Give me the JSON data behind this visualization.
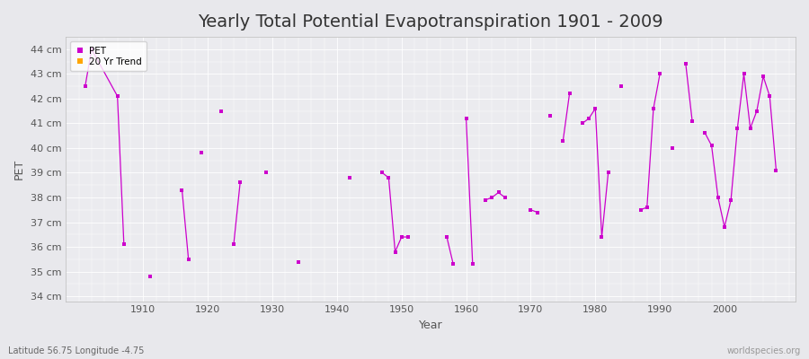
{
  "title": "Yearly Total Potential Evapotranspiration 1901 - 2009",
  "xlabel": "Year",
  "ylabel": "PET",
  "subtitle": "Latitude 56.75 Longitude -4.75",
  "watermark": "worldspecies.org",
  "pet_data": [
    [
      1901,
      42.5
    ],
    [
      1902,
      44.0
    ],
    [
      1906,
      42.1
    ],
    [
      1907,
      36.1
    ],
    [
      1908,
      null
    ],
    [
      1911,
      34.8
    ],
    [
      1912,
      null
    ],
    [
      1916,
      38.3
    ],
    [
      1917,
      35.5
    ],
    [
      1918,
      null
    ],
    [
      1919,
      39.8
    ],
    [
      1920,
      null
    ],
    [
      1922,
      41.5
    ],
    [
      1923,
      null
    ],
    [
      1924,
      36.1
    ],
    [
      1925,
      38.6
    ],
    [
      1926,
      null
    ],
    [
      1929,
      39.0
    ],
    [
      1930,
      null
    ],
    [
      1934,
      35.4
    ],
    [
      1935,
      null
    ],
    [
      1942,
      38.8
    ],
    [
      1943,
      null
    ],
    [
      1947,
      39.0
    ],
    [
      1948,
      38.8
    ],
    [
      1949,
      35.8
    ],
    [
      1950,
      36.4
    ],
    [
      1951,
      36.4
    ],
    [
      1952,
      null
    ],
    [
      1957,
      36.4
    ],
    [
      1958,
      35.3
    ],
    [
      1959,
      null
    ],
    [
      1960,
      41.2
    ],
    [
      1961,
      35.3
    ],
    [
      1962,
      null
    ],
    [
      1963,
      37.9
    ],
    [
      1964,
      38.0
    ],
    [
      1965,
      38.2
    ],
    [
      1966,
      38.0
    ],
    [
      1967,
      null
    ],
    [
      1970,
      37.5
    ],
    [
      1971,
      37.4
    ],
    [
      1972,
      null
    ],
    [
      1973,
      41.3
    ],
    [
      1974,
      null
    ],
    [
      1975,
      40.3
    ],
    [
      1976,
      42.2
    ],
    [
      1977,
      null
    ],
    [
      1978,
      41.0
    ],
    [
      1979,
      41.2
    ],
    [
      1980,
      41.6
    ],
    [
      1981,
      36.4
    ],
    [
      1982,
      39.0
    ],
    [
      1983,
      null
    ],
    [
      1984,
      42.5
    ],
    [
      1985,
      null
    ],
    [
      1987,
      37.5
    ],
    [
      1988,
      37.6
    ],
    [
      1989,
      41.6
    ],
    [
      1990,
      43.0
    ],
    [
      1991,
      null
    ],
    [
      1992,
      40.0
    ],
    [
      1993,
      null
    ],
    [
      1994,
      43.4
    ],
    [
      1995,
      41.1
    ],
    [
      1996,
      null
    ],
    [
      1997,
      40.6
    ],
    [
      1998,
      40.1
    ],
    [
      1999,
      38.0
    ],
    [
      2000,
      36.8
    ],
    [
      2001,
      37.9
    ],
    [
      2002,
      40.8
    ],
    [
      2003,
      43.0
    ],
    [
      2004,
      40.8
    ],
    [
      2005,
      41.5
    ],
    [
      2006,
      42.9
    ],
    [
      2007,
      42.1
    ],
    [
      2008,
      39.1
    ]
  ],
  "line_color": "#CC00CC",
  "marker_color": "#CC00CC",
  "trend_color": "#FFA500",
  "background_color": "#E8E8EC",
  "plot_bg_color": "#EBEBEF",
  "grid_color": "#FFFFFF",
  "ylim": [
    33.8,
    44.5
  ],
  "xlim": [
    1898,
    2011
  ],
  "ytick_labels": [
    "34 cm",
    "35 cm",
    "36 cm",
    "37 cm",
    "38 cm",
    "39 cm",
    "40 cm",
    "41 cm",
    "42 cm",
    "43 cm",
    "44 cm"
  ],
  "ytick_values": [
    34,
    35,
    36,
    37,
    38,
    39,
    40,
    41,
    42,
    43,
    44
  ],
  "xtick_values": [
    1910,
    1920,
    1930,
    1940,
    1950,
    1960,
    1970,
    1980,
    1990,
    2000
  ],
  "title_fontsize": 14,
  "label_fontsize": 9,
  "tick_fontsize": 8
}
